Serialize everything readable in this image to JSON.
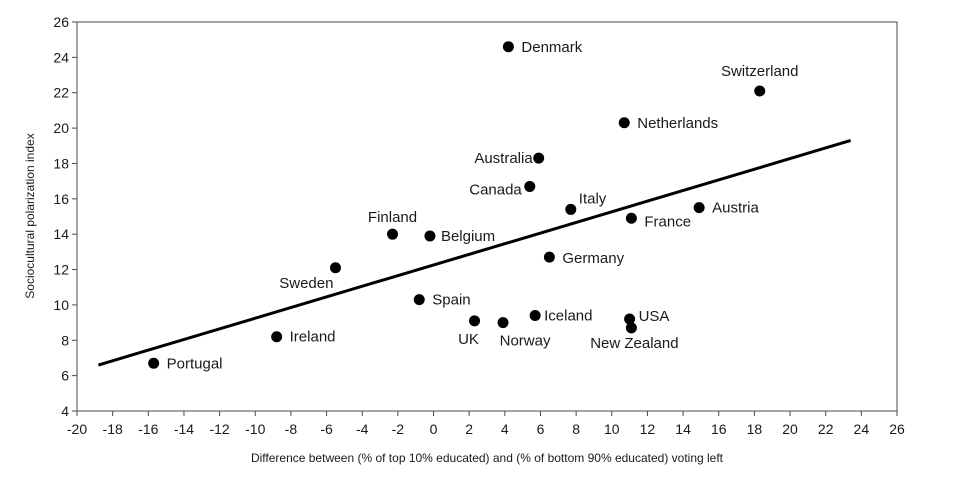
{
  "chart_data": {
    "type": "scatter",
    "title": "",
    "xlabel": "Difference between (% of top 10% educated) and (% of bottom 90% educated) voting left",
    "ylabel": "Sociocultural polarization index",
    "xlim": [
      -20,
      26
    ],
    "ylim": [
      4,
      26
    ],
    "xticks": [
      "-20",
      "-18",
      "-16",
      "-14",
      "-12",
      "-10",
      "-8",
      "-6",
      "-4",
      "-2",
      "0",
      "2",
      "4",
      "6",
      "8",
      "10",
      "12",
      "14",
      "16",
      "18",
      "20",
      "22",
      "24",
      "26"
    ],
    "yticks": [
      "4",
      "6",
      "8",
      "10",
      "12",
      "14",
      "16",
      "18",
      "20",
      "22",
      "24",
      "26"
    ],
    "grid": false,
    "legend": "none",
    "point_color": "#000000",
    "points": [
      {
        "label": "Denmark",
        "x": 4.2,
        "y": 24.6
      },
      {
        "label": "Switzerland",
        "x": 18.3,
        "y": 22.1
      },
      {
        "label": "Netherlands",
        "x": 10.7,
        "y": 20.3
      },
      {
        "label": "Australia",
        "x": 5.9,
        "y": 18.3
      },
      {
        "label": "Canada",
        "x": 5.4,
        "y": 16.7
      },
      {
        "label": "Italy",
        "x": 7.7,
        "y": 15.4
      },
      {
        "label": "Austria",
        "x": 14.9,
        "y": 15.5
      },
      {
        "label": "France",
        "x": 11.1,
        "y": 14.9
      },
      {
        "label": "Finland",
        "x": -2.3,
        "y": 14.0
      },
      {
        "label": "Belgium",
        "x": -0.2,
        "y": 13.9
      },
      {
        "label": "Germany",
        "x": 6.5,
        "y": 12.7
      },
      {
        "label": "Sweden",
        "x": -5.5,
        "y": 12.1
      },
      {
        "label": "Spain",
        "x": -0.8,
        "y": 10.3
      },
      {
        "label": "Iceland",
        "x": 5.7,
        "y": 9.4
      },
      {
        "label": "UK",
        "x": 2.3,
        "y": 9.1
      },
      {
        "label": "Norway",
        "x": 3.9,
        "y": 9.0
      },
      {
        "label": "USA",
        "x": 11.0,
        "y": 9.2
      },
      {
        "label": "New Zealand",
        "x": 11.1,
        "y": 8.7
      },
      {
        "label": "Ireland",
        "x": -8.8,
        "y": 8.2
      },
      {
        "label": "Portugal",
        "x": -15.7,
        "y": 6.7
      }
    ],
    "trendline": {
      "x": [
        -18.8,
        23.4
      ],
      "y": [
        6.6,
        19.3
      ]
    }
  }
}
